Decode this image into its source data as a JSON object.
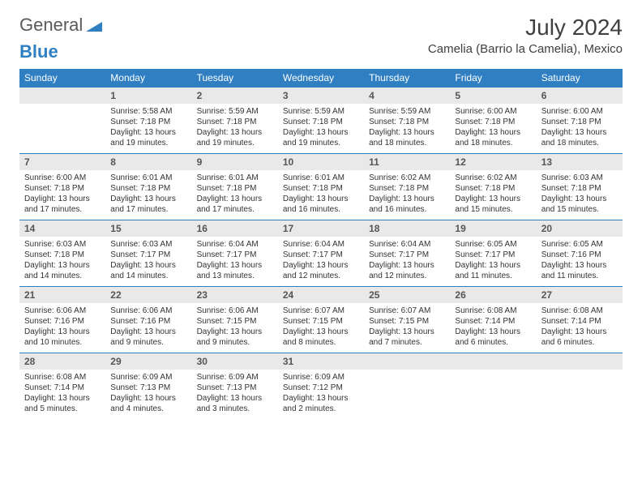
{
  "brand": {
    "part1": "General",
    "part2": "Blue"
  },
  "title": "July 2024",
  "location": "Camelia (Barrio la Camelia), Mexico",
  "colors": {
    "header_bg": "#2f7fc2",
    "header_text": "#ffffff",
    "daynum_bg": "#e9e9e9",
    "border": "#2f7fc2",
    "text": "#333333",
    "brand_gray": "#5a5a5a",
    "brand_blue": "#2f7fc2",
    "page_bg": "#ffffff"
  },
  "typography": {
    "title_fontsize": 28,
    "location_fontsize": 15,
    "header_fontsize": 12,
    "daynum_fontsize": 12,
    "body_fontsize": 10
  },
  "weekdays": [
    "Sunday",
    "Monday",
    "Tuesday",
    "Wednesday",
    "Thursday",
    "Friday",
    "Saturday"
  ],
  "start_offset": 1,
  "days": [
    {
      "n": "1",
      "sunrise": "Sunrise: 5:58 AM",
      "sunset": "Sunset: 7:18 PM",
      "daylight": "Daylight: 13 hours and 19 minutes."
    },
    {
      "n": "2",
      "sunrise": "Sunrise: 5:59 AM",
      "sunset": "Sunset: 7:18 PM",
      "daylight": "Daylight: 13 hours and 19 minutes."
    },
    {
      "n": "3",
      "sunrise": "Sunrise: 5:59 AM",
      "sunset": "Sunset: 7:18 PM",
      "daylight": "Daylight: 13 hours and 19 minutes."
    },
    {
      "n": "4",
      "sunrise": "Sunrise: 5:59 AM",
      "sunset": "Sunset: 7:18 PM",
      "daylight": "Daylight: 13 hours and 18 minutes."
    },
    {
      "n": "5",
      "sunrise": "Sunrise: 6:00 AM",
      "sunset": "Sunset: 7:18 PM",
      "daylight": "Daylight: 13 hours and 18 minutes."
    },
    {
      "n": "6",
      "sunrise": "Sunrise: 6:00 AM",
      "sunset": "Sunset: 7:18 PM",
      "daylight": "Daylight: 13 hours and 18 minutes."
    },
    {
      "n": "7",
      "sunrise": "Sunrise: 6:00 AM",
      "sunset": "Sunset: 7:18 PM",
      "daylight": "Daylight: 13 hours and 17 minutes."
    },
    {
      "n": "8",
      "sunrise": "Sunrise: 6:01 AM",
      "sunset": "Sunset: 7:18 PM",
      "daylight": "Daylight: 13 hours and 17 minutes."
    },
    {
      "n": "9",
      "sunrise": "Sunrise: 6:01 AM",
      "sunset": "Sunset: 7:18 PM",
      "daylight": "Daylight: 13 hours and 17 minutes."
    },
    {
      "n": "10",
      "sunrise": "Sunrise: 6:01 AM",
      "sunset": "Sunset: 7:18 PM",
      "daylight": "Daylight: 13 hours and 16 minutes."
    },
    {
      "n": "11",
      "sunrise": "Sunrise: 6:02 AM",
      "sunset": "Sunset: 7:18 PM",
      "daylight": "Daylight: 13 hours and 16 minutes."
    },
    {
      "n": "12",
      "sunrise": "Sunrise: 6:02 AM",
      "sunset": "Sunset: 7:18 PM",
      "daylight": "Daylight: 13 hours and 15 minutes."
    },
    {
      "n": "13",
      "sunrise": "Sunrise: 6:03 AM",
      "sunset": "Sunset: 7:18 PM",
      "daylight": "Daylight: 13 hours and 15 minutes."
    },
    {
      "n": "14",
      "sunrise": "Sunrise: 6:03 AM",
      "sunset": "Sunset: 7:18 PM",
      "daylight": "Daylight: 13 hours and 14 minutes."
    },
    {
      "n": "15",
      "sunrise": "Sunrise: 6:03 AM",
      "sunset": "Sunset: 7:17 PM",
      "daylight": "Daylight: 13 hours and 14 minutes."
    },
    {
      "n": "16",
      "sunrise": "Sunrise: 6:04 AM",
      "sunset": "Sunset: 7:17 PM",
      "daylight": "Daylight: 13 hours and 13 minutes."
    },
    {
      "n": "17",
      "sunrise": "Sunrise: 6:04 AM",
      "sunset": "Sunset: 7:17 PM",
      "daylight": "Daylight: 13 hours and 12 minutes."
    },
    {
      "n": "18",
      "sunrise": "Sunrise: 6:04 AM",
      "sunset": "Sunset: 7:17 PM",
      "daylight": "Daylight: 13 hours and 12 minutes."
    },
    {
      "n": "19",
      "sunrise": "Sunrise: 6:05 AM",
      "sunset": "Sunset: 7:17 PM",
      "daylight": "Daylight: 13 hours and 11 minutes."
    },
    {
      "n": "20",
      "sunrise": "Sunrise: 6:05 AM",
      "sunset": "Sunset: 7:16 PM",
      "daylight": "Daylight: 13 hours and 11 minutes."
    },
    {
      "n": "21",
      "sunrise": "Sunrise: 6:06 AM",
      "sunset": "Sunset: 7:16 PM",
      "daylight": "Daylight: 13 hours and 10 minutes."
    },
    {
      "n": "22",
      "sunrise": "Sunrise: 6:06 AM",
      "sunset": "Sunset: 7:16 PM",
      "daylight": "Daylight: 13 hours and 9 minutes."
    },
    {
      "n": "23",
      "sunrise": "Sunrise: 6:06 AM",
      "sunset": "Sunset: 7:15 PM",
      "daylight": "Daylight: 13 hours and 9 minutes."
    },
    {
      "n": "24",
      "sunrise": "Sunrise: 6:07 AM",
      "sunset": "Sunset: 7:15 PM",
      "daylight": "Daylight: 13 hours and 8 minutes."
    },
    {
      "n": "25",
      "sunrise": "Sunrise: 6:07 AM",
      "sunset": "Sunset: 7:15 PM",
      "daylight": "Daylight: 13 hours and 7 minutes."
    },
    {
      "n": "26",
      "sunrise": "Sunrise: 6:08 AM",
      "sunset": "Sunset: 7:14 PM",
      "daylight": "Daylight: 13 hours and 6 minutes."
    },
    {
      "n": "27",
      "sunrise": "Sunrise: 6:08 AM",
      "sunset": "Sunset: 7:14 PM",
      "daylight": "Daylight: 13 hours and 6 minutes."
    },
    {
      "n": "28",
      "sunrise": "Sunrise: 6:08 AM",
      "sunset": "Sunset: 7:14 PM",
      "daylight": "Daylight: 13 hours and 5 minutes."
    },
    {
      "n": "29",
      "sunrise": "Sunrise: 6:09 AM",
      "sunset": "Sunset: 7:13 PM",
      "daylight": "Daylight: 13 hours and 4 minutes."
    },
    {
      "n": "30",
      "sunrise": "Sunrise: 6:09 AM",
      "sunset": "Sunset: 7:13 PM",
      "daylight": "Daylight: 13 hours and 3 minutes."
    },
    {
      "n": "31",
      "sunrise": "Sunrise: 6:09 AM",
      "sunset": "Sunset: 7:12 PM",
      "daylight": "Daylight: 13 hours and 2 minutes."
    }
  ]
}
